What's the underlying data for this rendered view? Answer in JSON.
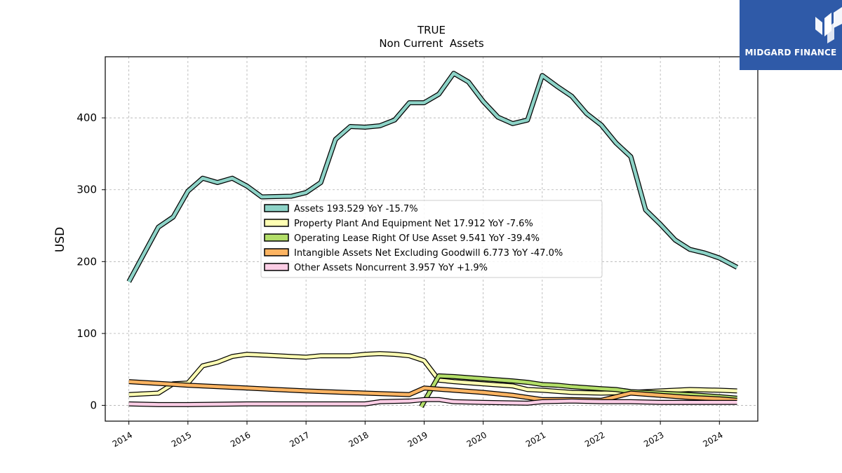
{
  "logo": {
    "text": "MIDGARD FINANCE",
    "background": "#2f5aa8"
  },
  "chart_data": {
    "type": "line",
    "title": "TRUE",
    "subtitle": "Non Current  Assets",
    "ylabel": "USD",
    "xlabel": "",
    "xlim": [
      2013.6,
      2024.65
    ],
    "ylim": [
      -22,
      485
    ],
    "yticks": [
      0,
      100,
      200,
      300,
      400
    ],
    "xticks": [
      "2014",
      "2015",
      "2016",
      "2017",
      "2018",
      "2019",
      "2020",
      "2021",
      "2022",
      "2023",
      "2024"
    ],
    "grid": true,
    "legend_position": "center",
    "series": [
      {
        "name": "Assets  193.529 YoY -15.7%",
        "color": "#8dd3c7",
        "points": [
          [
            2014.0,
            172
          ],
          [
            2014.5,
            248
          ],
          [
            2014.75,
            262
          ],
          [
            2015.0,
            298
          ],
          [
            2015.25,
            316
          ],
          [
            2015.5,
            310
          ],
          [
            2015.75,
            316
          ],
          [
            2016.0,
            305
          ],
          [
            2016.25,
            290
          ],
          [
            2016.75,
            291
          ],
          [
            2017.0,
            296
          ],
          [
            2017.25,
            310
          ],
          [
            2017.5,
            370
          ],
          [
            2017.75,
            388
          ],
          [
            2018.0,
            387
          ],
          [
            2018.25,
            389
          ],
          [
            2018.5,
            397
          ],
          [
            2018.75,
            421
          ],
          [
            2019.0,
            421
          ],
          [
            2019.25,
            433
          ],
          [
            2019.5,
            462
          ],
          [
            2019.75,
            450
          ],
          [
            2020.0,
            423
          ],
          [
            2020.25,
            401
          ],
          [
            2020.5,
            392
          ],
          [
            2020.75,
            397
          ],
          [
            2021.0,
            459
          ],
          [
            2021.25,
            444
          ],
          [
            2021.5,
            430
          ],
          [
            2021.75,
            406
          ],
          [
            2022.0,
            390
          ],
          [
            2022.25,
            365
          ],
          [
            2022.5,
            346
          ],
          [
            2022.75,
            272
          ],
          [
            2023.0,
            252
          ],
          [
            2023.25,
            230
          ],
          [
            2023.5,
            217
          ],
          [
            2023.75,
            212
          ],
          [
            2024.0,
            205
          ],
          [
            2024.3,
            192
          ]
        ]
      },
      {
        "name": "Property Plant And Equipment Net  17.912 YoY -7.6%",
        "color": "#ffffb3",
        "points": [
          [
            2014.0,
            15
          ],
          [
            2014.5,
            17
          ],
          [
            2014.75,
            30
          ],
          [
            2015.0,
            31
          ],
          [
            2015.25,
            55
          ],
          [
            2015.5,
            60
          ],
          [
            2015.75,
            68
          ],
          [
            2016.0,
            71
          ],
          [
            2016.25,
            70
          ],
          [
            2016.75,
            68
          ],
          [
            2017.0,
            67
          ],
          [
            2017.25,
            69
          ],
          [
            2017.5,
            69
          ],
          [
            2017.75,
            69
          ],
          [
            2018.0,
            71
          ],
          [
            2018.25,
            72
          ],
          [
            2018.5,
            71
          ],
          [
            2018.75,
            69
          ],
          [
            2019.0,
            62
          ],
          [
            2019.25,
            35
          ],
          [
            2019.5,
            33
          ],
          [
            2020.0,
            30
          ],
          [
            2020.5,
            27
          ],
          [
            2020.75,
            22
          ],
          [
            2021.0,
            21
          ],
          [
            2021.5,
            18
          ],
          [
            2022.0,
            17
          ],
          [
            2022.5,
            18
          ],
          [
            2023.0,
            20
          ],
          [
            2023.5,
            22
          ],
          [
            2024.0,
            21
          ],
          [
            2024.3,
            20
          ]
        ]
      },
      {
        "name": "Operating Lease Right Of Use Asset  9.541 YoY -39.4%",
        "color": "#b3de69",
        "points": [
          [
            2018.95,
            -2
          ],
          [
            2019.25,
            41
          ],
          [
            2019.5,
            40
          ],
          [
            2020.0,
            37
          ],
          [
            2020.5,
            34
          ],
          [
            2020.75,
            32
          ],
          [
            2021.0,
            29
          ],
          [
            2021.25,
            28
          ],
          [
            2021.5,
            26
          ],
          [
            2022.0,
            23
          ],
          [
            2022.25,
            22
          ],
          [
            2022.5,
            19
          ],
          [
            2023.0,
            17
          ],
          [
            2023.5,
            15
          ],
          [
            2024.0,
            12
          ],
          [
            2024.3,
            10
          ]
        ]
      },
      {
        "name": "Intangible Assets Net Excluding Goodwill  6.773 YoY -47.0%",
        "color": "#fdb462",
        "points": [
          [
            2014.0,
            33
          ],
          [
            2015.0,
            28
          ],
          [
            2016.0,
            24
          ],
          [
            2017.0,
            20
          ],
          [
            2018.0,
            17
          ],
          [
            2018.75,
            15
          ],
          [
            2019.0,
            24
          ],
          [
            2019.5,
            21
          ],
          [
            2020.0,
            18
          ],
          [
            2020.5,
            14
          ],
          [
            2020.75,
            11
          ],
          [
            2021.0,
            8
          ],
          [
            2021.5,
            8
          ],
          [
            2022.0,
            7
          ],
          [
            2022.5,
            17
          ],
          [
            2023.0,
            14
          ],
          [
            2023.5,
            11
          ],
          [
            2024.0,
            9
          ],
          [
            2024.3,
            7
          ]
        ]
      },
      {
        "name": "Other Assets Noncurrent  3.957 YoY +1.9%",
        "color": "#fccde5",
        "points": [
          [
            2014.0,
            2
          ],
          [
            2014.5,
            1
          ],
          [
            2015.0,
            1
          ],
          [
            2016.0,
            2
          ],
          [
            2017.0,
            2
          ],
          [
            2018.0,
            2
          ],
          [
            2018.25,
            5
          ],
          [
            2018.75,
            6
          ],
          [
            2019.0,
            8
          ],
          [
            2019.25,
            8
          ],
          [
            2019.5,
            5
          ],
          [
            2020.0,
            4
          ],
          [
            2020.75,
            3
          ],
          [
            2021.0,
            5
          ],
          [
            2021.5,
            6
          ],
          [
            2022.0,
            5
          ],
          [
            2022.5,
            5
          ],
          [
            2023.0,
            4
          ],
          [
            2023.5,
            4
          ],
          [
            2024.0,
            4
          ],
          [
            2024.3,
            4
          ]
        ]
      }
    ]
  }
}
